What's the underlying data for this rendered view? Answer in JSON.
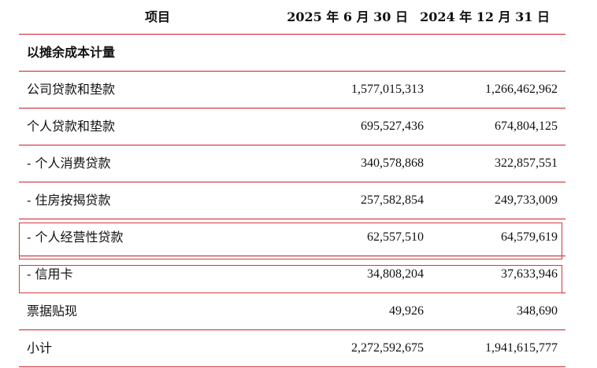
{
  "header": {
    "item": "项目",
    "col1": "2025 年 6 月 30 日",
    "col2": "2024 年 12 月 31 日"
  },
  "section_title": "以摊余成本计量",
  "rows": [
    {
      "label": "公司贷款和垫款",
      "v1": "1,577,015,313",
      "v2": "1,266,462,962"
    },
    {
      "label": "个人贷款和垫款",
      "v1": "695,527,436",
      "v2": "674,804,125"
    },
    {
      "label": "- 个人消费贷款",
      "v1": "340,578,868",
      "v2": "322,857,551"
    },
    {
      "label": "- 住房按揭贷款",
      "v1": "257,582,854",
      "v2": "249,733,009"
    },
    {
      "label": "- 个人经营性贷款",
      "v1": "62,557,510",
      "v2": "64,579,619"
    },
    {
      "label": "- 信用卡",
      "v1": "34,808,204",
      "v2": "37,633,946"
    },
    {
      "label": "票据贴现",
      "v1": "49,926",
      "v2": "348,690"
    },
    {
      "label": "小计",
      "v1": "2,272,592,675",
      "v2": "1,941,615,777"
    }
  ],
  "highlight_color": "#d43a3a",
  "rule_color": "#c8202a"
}
